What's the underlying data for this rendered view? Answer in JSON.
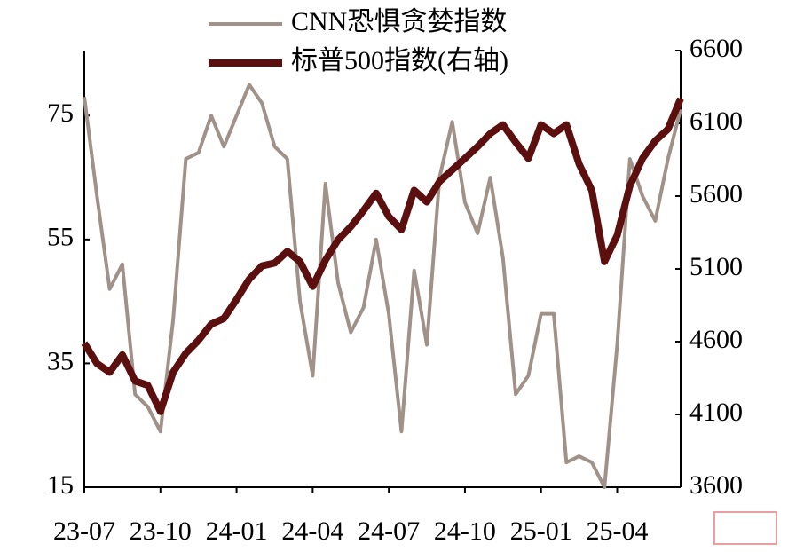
{
  "chart_data": {
    "type": "line",
    "categories": [
      "23-07",
      null,
      null,
      null,
      null,
      null,
      "23-10",
      null,
      null,
      null,
      null,
      null,
      "24-01",
      null,
      null,
      null,
      null,
      null,
      "24-04",
      null,
      null,
      null,
      null,
      null,
      "24-07",
      null,
      null,
      null,
      null,
      null,
      "24-10",
      null,
      null,
      null,
      null,
      null,
      "25-01",
      null,
      null,
      null,
      null,
      null,
      "25-04",
      null,
      null,
      null,
      null,
      null
    ],
    "series": [
      {
        "name": "CNN恐惧贪婪指数",
        "color": "#a09189",
        "axis": "y",
        "values": [
          78,
          62,
          47,
          51,
          30,
          28,
          24,
          42,
          68,
          69,
          75,
          70,
          75,
          80,
          77,
          70,
          68,
          45,
          33,
          64,
          48,
          40,
          44,
          55,
          43,
          24,
          50,
          38,
          65,
          74,
          61,
          56,
          65,
          52,
          30,
          33,
          43,
          43,
          19,
          20,
          19,
          15,
          38,
          68,
          62,
          58,
          68,
          76
        ]
      },
      {
        "name": "标普500指数(右轴)",
        "color": "#5c0f0f",
        "axis": "y2",
        "values": [
          4590,
          4450,
          4390,
          4510,
          4330,
          4300,
          4120,
          4390,
          4520,
          4610,
          4720,
          4760,
          4890,
          5030,
          5120,
          5140,
          5220,
          5150,
          4980,
          5160,
          5300,
          5390,
          5500,
          5620,
          5460,
          5370,
          5640,
          5560,
          5700,
          5780,
          5860,
          5940,
          6030,
          6090,
          5970,
          5860,
          6090,
          6030,
          6090,
          5820,
          5640,
          5150,
          5330,
          5670,
          5860,
          5980,
          6060,
          6270
        ]
      }
    ],
    "ylim": [
      15,
      85.5
    ],
    "yticks": [
      15,
      35,
      55,
      75
    ],
    "y2lim": [
      3600,
      6600
    ],
    "y2ticks": [
      3600,
      4100,
      4600,
      5100,
      5600,
      6100,
      6600
    ],
    "grid": false,
    "legend": "top"
  }
}
